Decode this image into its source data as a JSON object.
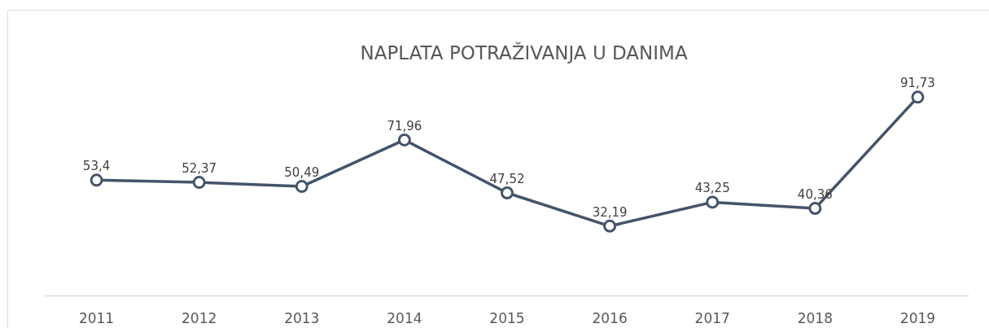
{
  "chart_data": {
    "type": "line",
    "title": "NAPLATA POTRAŽIVANJA U DANIMA",
    "categories": [
      "2011",
      "2012",
      "2013",
      "2014",
      "2015",
      "2016",
      "2017",
      "2018",
      "2019"
    ],
    "values": [
      53.4,
      52.37,
      50.49,
      71.96,
      47.52,
      32.19,
      43.25,
      40.36,
      91.73
    ],
    "value_labels": [
      "53,4",
      "52,37",
      "50,49",
      "71,96",
      "47,52",
      "32,19",
      "43,25",
      "40,36",
      "91,73"
    ],
    "color": "#44546a",
    "tick_labels": "x",
    "grid": false,
    "marker": "circle",
    "line_style": "solid"
  }
}
